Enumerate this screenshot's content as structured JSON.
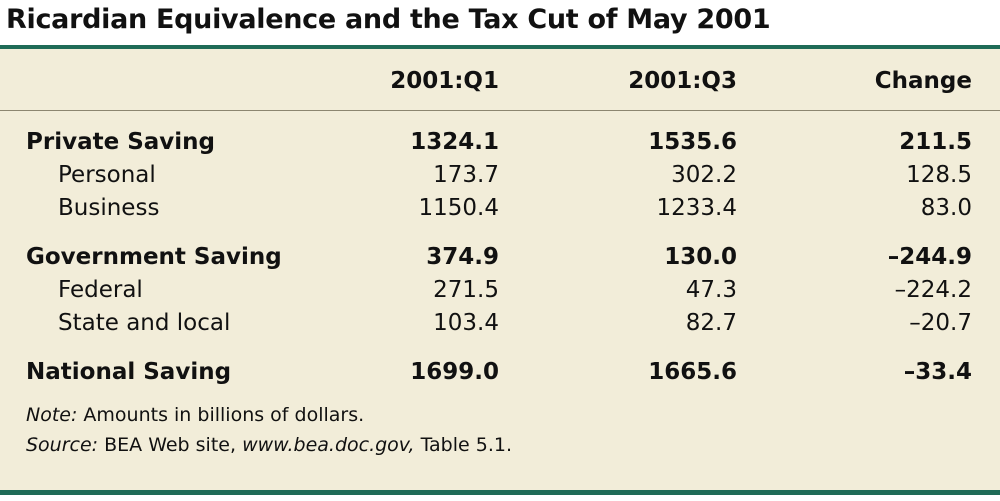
{
  "title": "Ricardian Equivalence and the Tax Cut of May 2001",
  "columns": [
    "2001:Q1",
    "2001:Q3",
    "Change"
  ],
  "rows": [
    {
      "label": "Private Saving",
      "q1": "1324.1",
      "q3": "1535.6",
      "change": "211.5",
      "bold": true
    },
    {
      "label": "Personal",
      "q1": "173.7",
      "q3": "302.2",
      "change": "128.5",
      "bold": false
    },
    {
      "label": "Business",
      "q1": "1150.4",
      "q3": "1233.4",
      "change": "83.0",
      "bold": false
    },
    {
      "label": "Government Saving",
      "q1": "374.9",
      "q3": "130.0",
      "change": "–244.9",
      "bold": true
    },
    {
      "label": "Federal",
      "q1": "271.5",
      "q3": "47.3",
      "change": "–224.2",
      "bold": false
    },
    {
      "label": "State and local",
      "q1": "103.4",
      "q3": "82.7",
      "change": "–20.7",
      "bold": false
    },
    {
      "label": "National Saving",
      "q1": "1699.0",
      "q3": "1665.6",
      "change": "–33.4",
      "bold": true
    }
  ],
  "note": {
    "label": "Note:",
    "text": " Amounts in billions of dollars."
  },
  "source": {
    "label": "Source:",
    "text_before": " BEA Web site, ",
    "url": "www.bea.doc.gov,",
    "text_after": " Table 5.1."
  },
  "colors": {
    "rule": "#1f6b57",
    "panel": "#f2edd9"
  }
}
